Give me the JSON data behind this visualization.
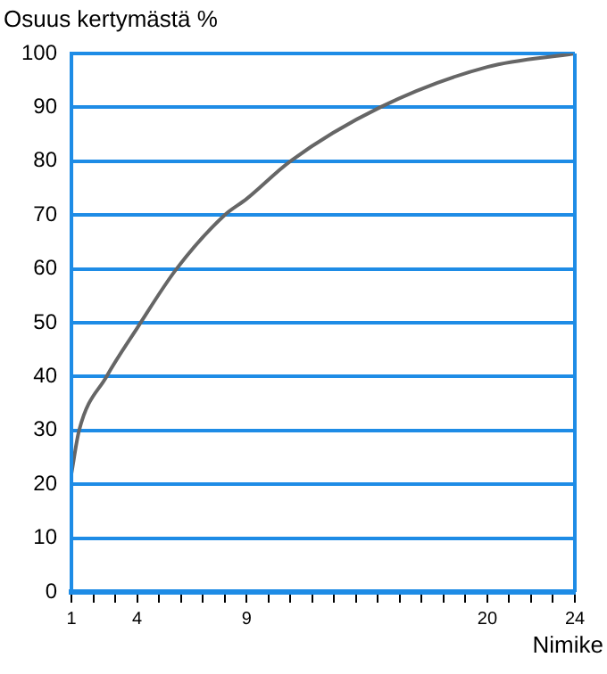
{
  "chart_data": {
    "type": "line",
    "ylabel": "Osuus kertymästä %",
    "xlabel": "Nimike",
    "series": [
      {
        "color": "#666666",
        "x": [
          1,
          1.35,
          2.6,
          4,
          5.8,
          8,
          9,
          11,
          15.1,
          20,
          24
        ],
        "values": [
          22,
          30,
          40,
          49,
          60,
          70,
          73,
          80,
          90,
          97.5,
          100
        ]
      }
    ],
    "xlim": [
      1,
      24
    ],
    "xticks": [
      1,
      {
        "value": 2,
        "label": null
      },
      {
        "value": 3,
        "label": null
      },
      4,
      {
        "value": 5,
        "label": null
      },
      {
        "value": 6,
        "label": null
      },
      {
        "value": 7,
        "label": null
      },
      {
        "value": 8,
        "label": null
      },
      9,
      {
        "value": 10,
        "label": null
      },
      {
        "value": 11,
        "label": null
      },
      {
        "value": 12,
        "label": null
      },
      {
        "value": 13,
        "label": null
      },
      {
        "value": 14,
        "label": null
      },
      {
        "value": 15,
        "label": null
      },
      {
        "value": 16,
        "label": null
      },
      {
        "value": 17,
        "label": null
      },
      {
        "value": 18,
        "label": null
      },
      {
        "value": 19,
        "label": null
      },
      20,
      {
        "value": 21,
        "label": null
      },
      {
        "value": 22,
        "label": null
      },
      {
        "value": 23,
        "label": null
      },
      24
    ],
    "ylim": [
      0,
      100
    ],
    "yticks": [
      0,
      10,
      20,
      30,
      40,
      50,
      60,
      70,
      80,
      90,
      100
    ],
    "grid": "y",
    "marker": "none",
    "line_style": "solid",
    "legend": false
  }
}
